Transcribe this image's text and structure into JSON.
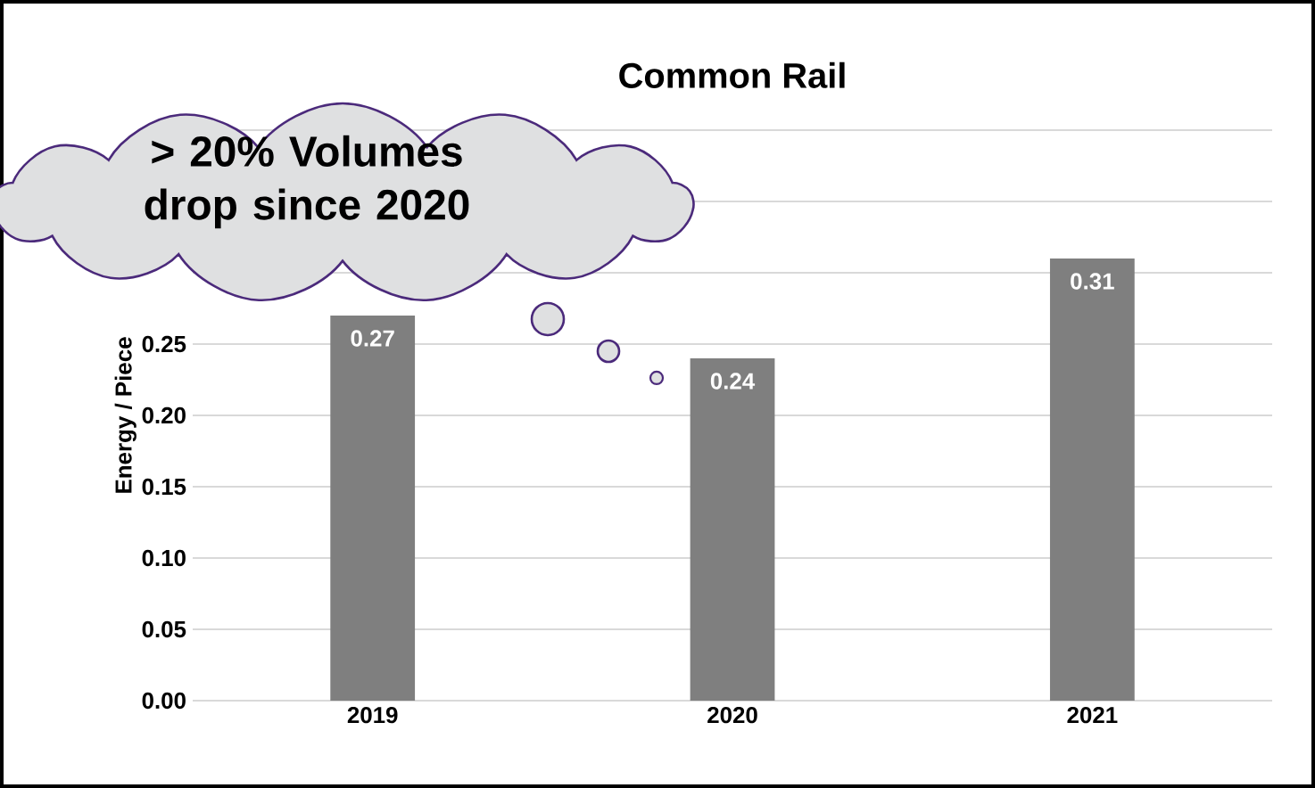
{
  "chart_data": {
    "type": "bar",
    "title": "Common Rail",
    "ylabel": "Energy / Piece",
    "categories": [
      "2019",
      "2020",
      "2021"
    ],
    "values": [
      0.27,
      0.24,
      0.31
    ],
    "color": "#7f7f7f",
    "value_labels": [
      "0.27",
      "0.24",
      "0.31"
    ],
    "ylim": [
      0,
      0.4
    ],
    "yticks": [
      {
        "value": 0,
        "label": "0.00"
      },
      {
        "value": 0.05,
        "label": "0.05"
      },
      {
        "value": 0.1,
        "label": "0.10"
      },
      {
        "value": 0.15,
        "label": "0.15"
      },
      {
        "value": 0.2,
        "label": "0.20"
      },
      {
        "value": 0.25,
        "label": "0.25"
      },
      {
        "value": 0.3,
        "label": null
      },
      {
        "value": 0.35,
        "label": null
      },
      {
        "value": 0.4,
        "label": null
      }
    ],
    "grid": "y",
    "annotations": [
      "> 20% Volumes drop since 2020"
    ]
  }
}
